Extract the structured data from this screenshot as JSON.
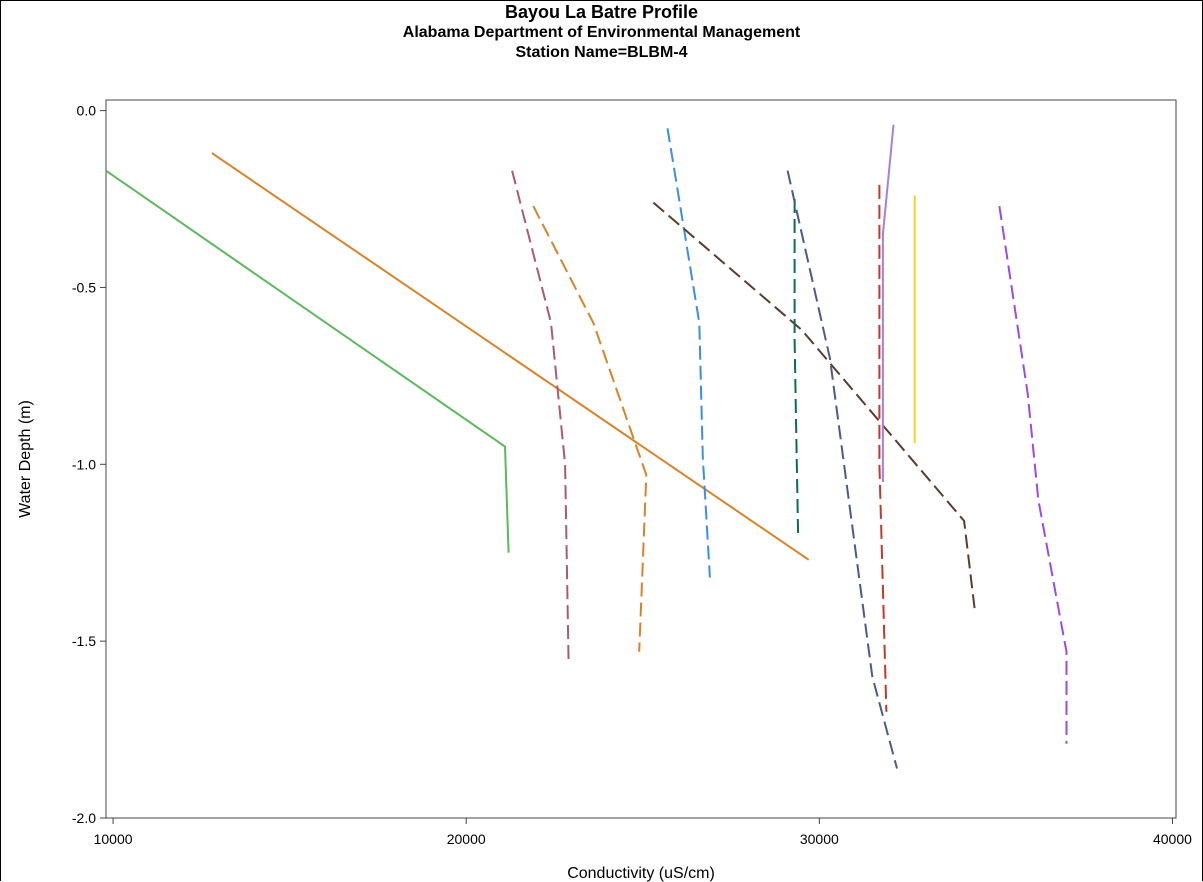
{
  "chart_data": {
    "type": "line",
    "title": "Bayou La Batre Profile",
    "subtitle": "Alabama Department of Environmental Management",
    "subtitle2": "Station Name=BLBM-4",
    "xlabel": "Conductivity (uS/cm)",
    "ylabel": "Water Depth (m)",
    "xlim": [
      9800,
      40100
    ],
    "ylim": [
      -2.0,
      0.03
    ],
    "xticks": [
      10000,
      20000,
      30000,
      40000
    ],
    "yticks": [
      0.0,
      -0.5,
      -1.0,
      -1.5,
      -2.0
    ],
    "xtick_labels": [
      "10000",
      "20000",
      "30000",
      "40000"
    ],
    "ytick_labels": [
      "0.0",
      "-0.5",
      "-1.0",
      "-1.5",
      "-2.0"
    ],
    "grid": false,
    "series": [
      {
        "color": "#5cb85c",
        "dash": "solid",
        "points": [
          [
            9800,
            -0.17
          ],
          [
            21100,
            -0.95
          ],
          [
            21200,
            -1.25
          ]
        ]
      },
      {
        "color": "#d8832a",
        "dash": "solid",
        "points": [
          [
            12800,
            -0.12
          ],
          [
            29700,
            -1.27
          ]
        ]
      },
      {
        "color": "#a85a78",
        "dash": "dashed",
        "points": [
          [
            21300,
            -0.17
          ],
          [
            22400,
            -0.6
          ],
          [
            22800,
            -1.0
          ],
          [
            22900,
            -1.56
          ]
        ]
      },
      {
        "color": "#d8832a",
        "dash": "dashed",
        "points": [
          [
            21900,
            -0.27
          ],
          [
            23600,
            -0.6
          ],
          [
            25100,
            -1.03
          ],
          [
            24900,
            -1.53
          ]
        ]
      },
      {
        "color": "#3a8ee8",
        "dash": "dashed",
        "points": [
          [
            25700,
            -0.05
          ],
          [
            26600,
            -0.6
          ],
          [
            26700,
            -0.98
          ],
          [
            26900,
            -1.32
          ]
        ]
      },
      {
        "color": "#5b3b2a",
        "dash": "dashed",
        "points": [
          [
            25300,
            -0.26
          ],
          [
            29500,
            -0.62
          ],
          [
            34100,
            -1.16
          ],
          [
            34400,
            -1.41
          ]
        ]
      },
      {
        "color": "#0a6b5a",
        "dash": "dashed",
        "points": [
          [
            29300,
            -0.25
          ],
          [
            29300,
            -0.65
          ],
          [
            29400,
            -1.2
          ]
        ]
      },
      {
        "color": "#4a5a8a",
        "dash": "dashed",
        "points": [
          [
            29100,
            -0.17
          ],
          [
            30300,
            -0.7
          ],
          [
            31500,
            -1.6
          ],
          [
            32200,
            -1.86
          ]
        ]
      },
      {
        "color": "#c0392b",
        "dash": "dashed",
        "points": [
          [
            31700,
            -0.21
          ],
          [
            31700,
            -1.0
          ],
          [
            31900,
            -1.7
          ]
        ]
      },
      {
        "color": "#a080e8",
        "dash": "solid",
        "points": [
          [
            32100,
            -0.04
          ],
          [
            31800,
            -0.35
          ],
          [
            31800,
            -1.05
          ]
        ]
      },
      {
        "color": "#f5d21c",
        "dash": "solid",
        "points": [
          [
            32700,
            -0.24
          ],
          [
            32700,
            -0.94
          ]
        ]
      },
      {
        "color": "#9a4ae8",
        "dash": "dashed",
        "points": [
          [
            35100,
            -0.27
          ],
          [
            35900,
            -0.8
          ],
          [
            36200,
            -1.1
          ],
          [
            37000,
            -1.53
          ],
          [
            37000,
            -1.79
          ]
        ]
      }
    ]
  }
}
